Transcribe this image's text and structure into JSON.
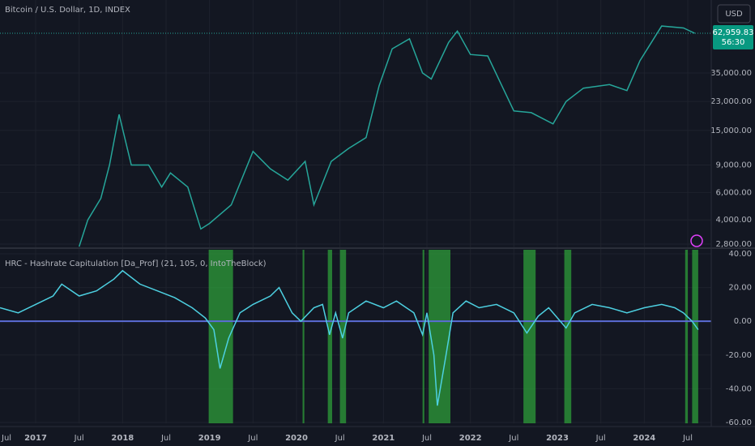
{
  "chart_data": [
    {
      "type": "line",
      "title": "Bitcoin / U.S. Dollar, 1D, INDEX",
      "log": true,
      "grid": true,
      "currency": "USD",
      "color": "#26a69a",
      "x": [
        2017.5,
        2017.6,
        2017.75,
        2017.85,
        2017.96,
        2018.1,
        2018.3,
        2018.45,
        2018.55,
        2018.75,
        2018.9,
        2019.0,
        2019.25,
        2019.5,
        2019.7,
        2019.9,
        2020.1,
        2020.2,
        2020.4,
        2020.6,
        2020.8,
        2020.95,
        2021.1,
        2021.3,
        2021.45,
        2021.55,
        2021.75,
        2021.85,
        2022.0,
        2022.2,
        2022.35,
        2022.5,
        2022.7,
        2022.95,
        2023.1,
        2023.3,
        2023.6,
        2023.8,
        2023.95,
        2024.2,
        2024.45,
        2024.58
      ],
      "values": [
        2700,
        4000,
        5500,
        9000,
        19000,
        9000,
        9000,
        6500,
        8000,
        6500,
        3500,
        3800,
        5000,
        11000,
        8500,
        7200,
        9500,
        5000,
        9500,
        11500,
        13500,
        29000,
        50000,
        58000,
        35000,
        32000,
        55000,
        65000,
        46000,
        45000,
        30000,
        20000,
        19500,
        16500,
        23000,
        28000,
        29500,
        27000,
        42000,
        70000,
        68000,
        62959.83
      ],
      "last_price": {
        "value": 62959.83,
        "label": "62,959.83"
      },
      "countdown": "56:30",
      "xlim": [
        2016.59,
        2024.77
      ],
      "ylim": [
        2670,
        102800
      ],
      "yticks": [
        {
          "value": 2800,
          "label": "2,800.00"
        },
        {
          "value": 4000,
          "label": "4,000.00"
        },
        {
          "value": 6000,
          "label": "6,000.00"
        },
        {
          "value": 9000,
          "label": "9,000.00"
        },
        {
          "value": 15000,
          "label": "15,000.00"
        },
        {
          "value": 23000,
          "label": "23,000.00"
        },
        {
          "value": 35000,
          "label": "35,000.00"
        }
      ]
    },
    {
      "type": "line",
      "title": "HRC - Hashrate Capitulation [Da_Prof] (21, 105, 0, IntoTheBlock)",
      "grid": true,
      "color": "#4dd0e1",
      "zero_line": 0,
      "zero_color": "#5b6cd6",
      "band_color": "#2e9e3a",
      "x": [
        2016.59,
        2016.8,
        2017.0,
        2017.2,
        2017.3,
        2017.5,
        2017.7,
        2017.9,
        2018.0,
        2018.2,
        2018.4,
        2018.6,
        2018.8,
        2018.95,
        2019.05,
        2019.12,
        2019.22,
        2019.35,
        2019.5,
        2019.7,
        2019.8,
        2019.95,
        2020.05,
        2020.2,
        2020.3,
        2020.38,
        2020.45,
        2020.53,
        2020.6,
        2020.8,
        2021.0,
        2021.15,
        2021.35,
        2021.45,
        2021.5,
        2021.58,
        2021.62,
        2021.72,
        2021.8,
        2021.95,
        2022.1,
        2022.3,
        2022.5,
        2022.65,
        2022.78,
        2022.9,
        2023.1,
        2023.2,
        2023.4,
        2023.6,
        2023.8,
        2024.0,
        2024.2,
        2024.35,
        2024.45,
        2024.55,
        2024.62
      ],
      "values": [
        8,
        5,
        10,
        15,
        22,
        15,
        18,
        25,
        30,
        22,
        18,
        14,
        8,
        2,
        -5,
        -28,
        -10,
        5,
        10,
        15,
        20,
        5,
        0,
        8,
        10,
        -8,
        5,
        -10,
        5,
        12,
        8,
        12,
        5,
        -8,
        5,
        -20,
        -50,
        -20,
        5,
        12,
        8,
        10,
        5,
        -7,
        3,
        8,
        -4,
        5,
        10,
        8,
        5,
        8,
        10,
        8,
        5,
        0,
        -5
      ],
      "bands": [
        [
          2018.99,
          2019.27
        ],
        [
          2020.07,
          2020.09
        ],
        [
          2020.36,
          2020.41
        ],
        [
          2020.5,
          2020.57
        ],
        [
          2021.45,
          2021.47
        ],
        [
          2021.52,
          2021.77
        ],
        [
          2022.61,
          2022.75
        ],
        [
          2023.08,
          2023.16
        ],
        [
          2024.47,
          2024.5
        ],
        [
          2024.55,
          2024.62
        ]
      ],
      "xlim": [
        2016.59,
        2024.77
      ],
      "ylim": [
        -60.5,
        42.4
      ],
      "yticks": [
        {
          "value": 40,
          "label": "40.00"
        },
        {
          "value": 20,
          "label": "20.00"
        },
        {
          "value": 0,
          "label": "0.00"
        },
        {
          "value": -20,
          "label": "-20.00"
        },
        {
          "value": -40,
          "label": "-40.00"
        },
        {
          "value": -60,
          "label": "-60.00"
        }
      ],
      "xticks": [
        {
          "value": 2016.5,
          "label": "Jul"
        },
        {
          "value": 2017,
          "label": "2017"
        },
        {
          "value": 2017.5,
          "label": "Jul"
        },
        {
          "value": 2018,
          "label": "2018"
        },
        {
          "value": 2018.5,
          "label": "Jul"
        },
        {
          "value": 2019,
          "label": "2019"
        },
        {
          "value": 2019.5,
          "label": "Jul"
        },
        {
          "value": 2020,
          "label": "2020"
        },
        {
          "value": 2020.5,
          "label": "Jul"
        },
        {
          "value": 2021,
          "label": "2021"
        },
        {
          "value": 2021.5,
          "label": "Jul"
        },
        {
          "value": 2022,
          "label": "2022"
        },
        {
          "value": 2022.5,
          "label": "Jul"
        },
        {
          "value": 2023,
          "label": "2023"
        },
        {
          "value": 2023.5,
          "label": "Jul"
        },
        {
          "value": 2024,
          "label": "2024"
        },
        {
          "value": 2024.5,
          "label": "Jul"
        }
      ]
    }
  ]
}
